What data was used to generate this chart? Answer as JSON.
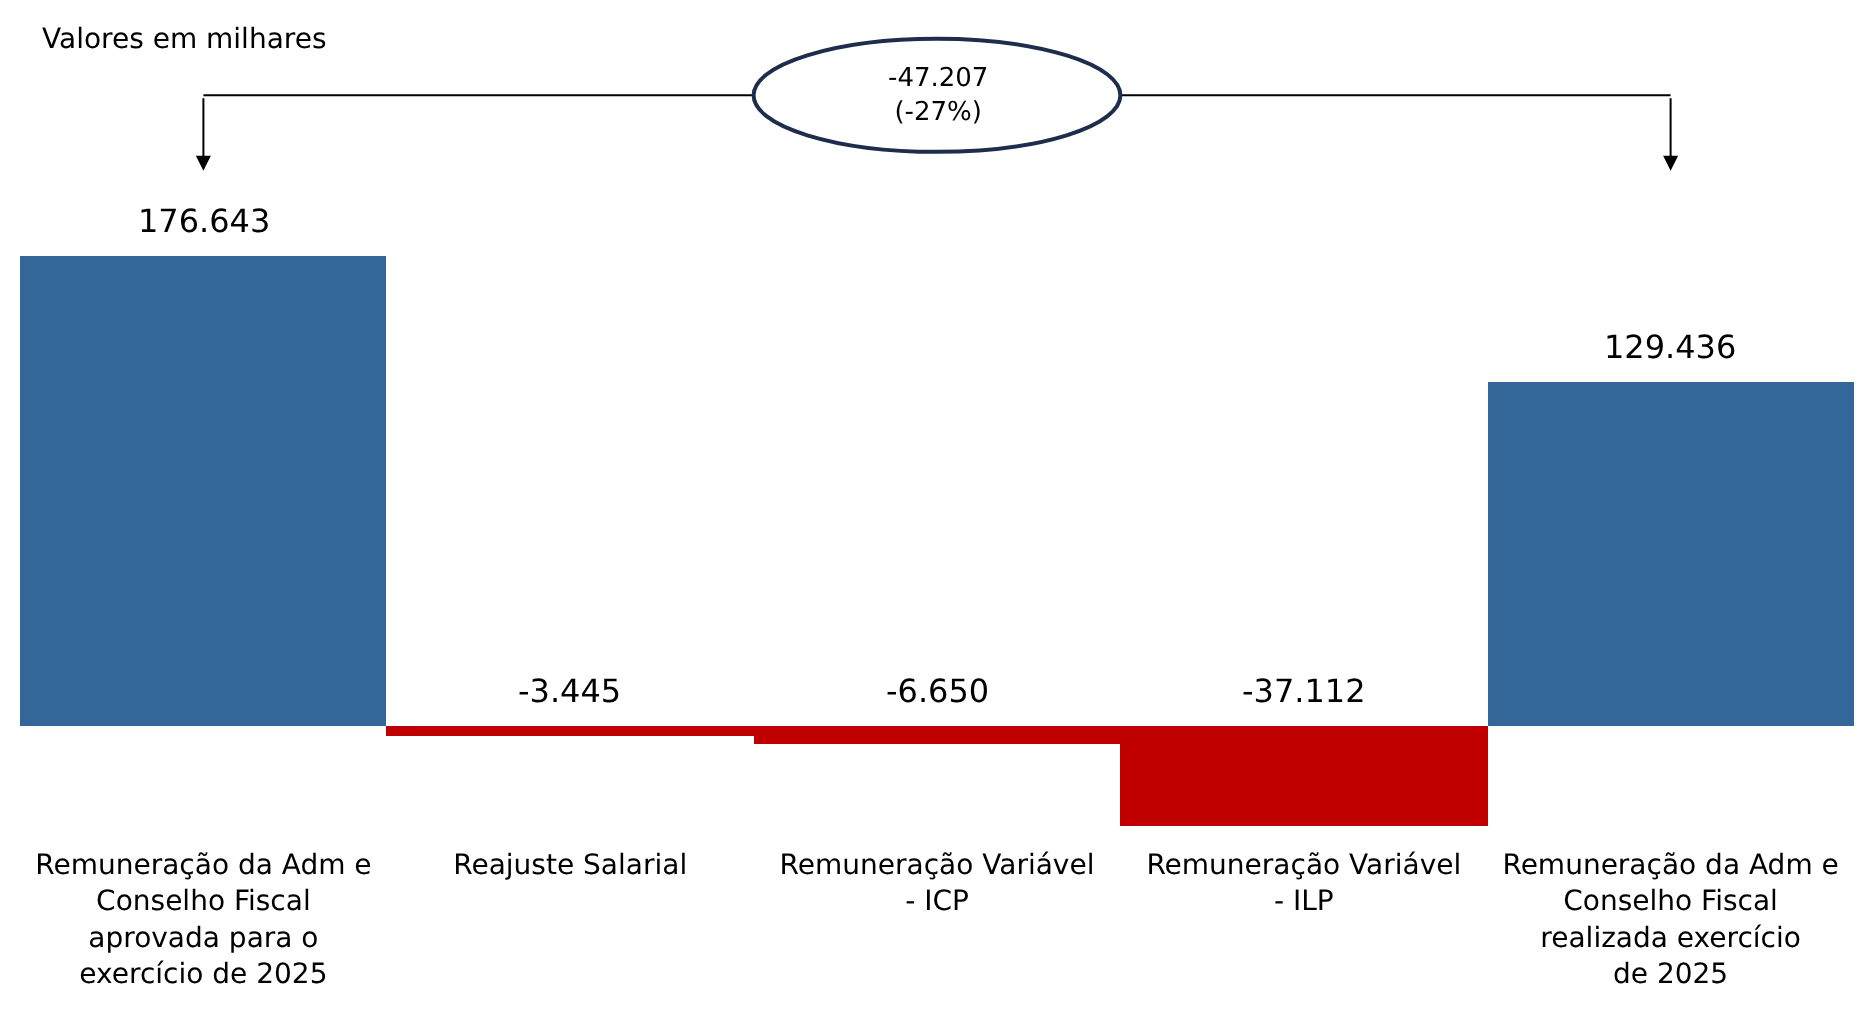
{
  "chart_data": {
    "type": "bar",
    "categories": [
      "Remuneração da Adm e Conselho Fiscal aprovada para o exercício de 2025",
      "Reajuste Salarial",
      "Remuneração Variável - ICP",
      "Remuneração Variável - ILP",
      "Remuneração da Adm e Conselho Fiscal realizada exercício de 2025"
    ],
    "values": [
      176643,
      -3445,
      -6650,
      -37112,
      129436
    ],
    "colors": [
      "#336699",
      "#c00000",
      "#c00000",
      "#c00000",
      "#336699"
    ],
    "value_labels": [
      "176.643",
      "-3.445",
      "-6.650",
      "-37.112",
      "129.436"
    ],
    "annotations": [
      "Valores em milhares",
      "-47.207\n(-27%)"
    ]
  }
}
